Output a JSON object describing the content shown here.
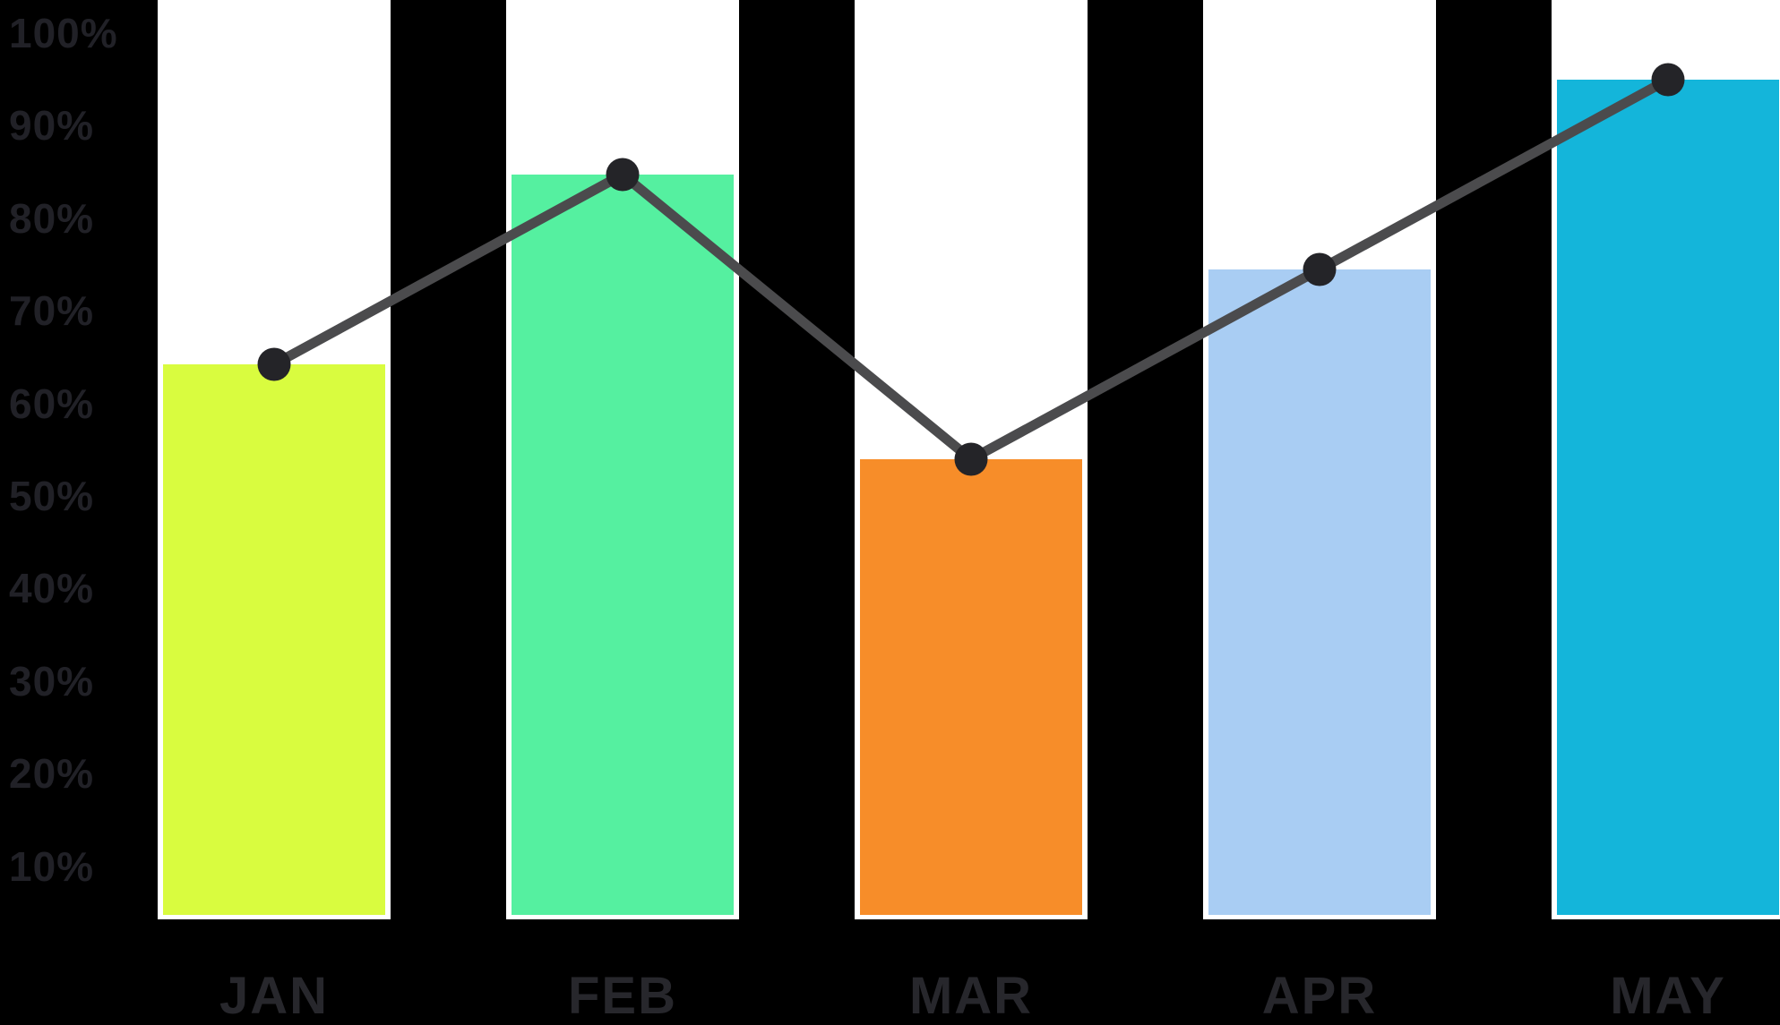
{
  "chart_data": {
    "type": "bar",
    "subtype": "bar-with-trend-line-overlay",
    "title": "",
    "xlabel": "",
    "ylabel": "",
    "categories": [
      "JAN",
      "FEB",
      "MAR",
      "APR",
      "MAY"
    ],
    "series": [
      {
        "name": "monthly percentage bars",
        "type": "bar",
        "values": [
          65,
          85,
          55,
          75,
          95
        ],
        "bar_colors": [
          "#D9FC3F",
          "#55F0A0",
          "#F78D29",
          "#A9CDF3",
          "#14B5DA"
        ]
      },
      {
        "name": "trend line",
        "type": "line",
        "values": [
          65,
          85,
          55,
          75,
          95
        ],
        "line_color": "#4B4B4D",
        "marker_color": "#242428"
      }
    ],
    "y_ticks": [
      "100%",
      "90%",
      "80%",
      "70%",
      "60%",
      "50%",
      "40%",
      "30%",
      "20%",
      "10%"
    ],
    "ylim": [
      0,
      100
    ],
    "grid": false,
    "legend": false,
    "background_color": "#000000",
    "column_background_color": "#FFFFFF",
    "axis_text_color": "#212127",
    "month_text_color": "#27272C"
  }
}
